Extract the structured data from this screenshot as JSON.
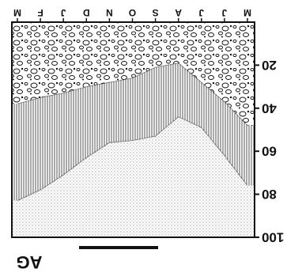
{
  "chart_data": {
    "type": "area",
    "title": "AG",
    "categories": [
      "M",
      "J",
      "J",
      "A",
      "S",
      "O",
      "N",
      "D",
      "J",
      "F",
      "M"
    ],
    "series": [
      {
        "color": "#000000",
        "values": [
          48,
          37,
          28,
          19,
          21,
          26,
          28,
          30,
          33,
          35,
          38
        ]
      },
      {
        "color": "#000000",
        "values": [
          76,
          62,
          49,
          44,
          53,
          55,
          56,
          63,
          71,
          78,
          83
        ]
      }
    ],
    "ylim": [
      0,
      100
    ],
    "yticks": [
      20,
      40,
      60,
      80,
      100
    ]
  }
}
